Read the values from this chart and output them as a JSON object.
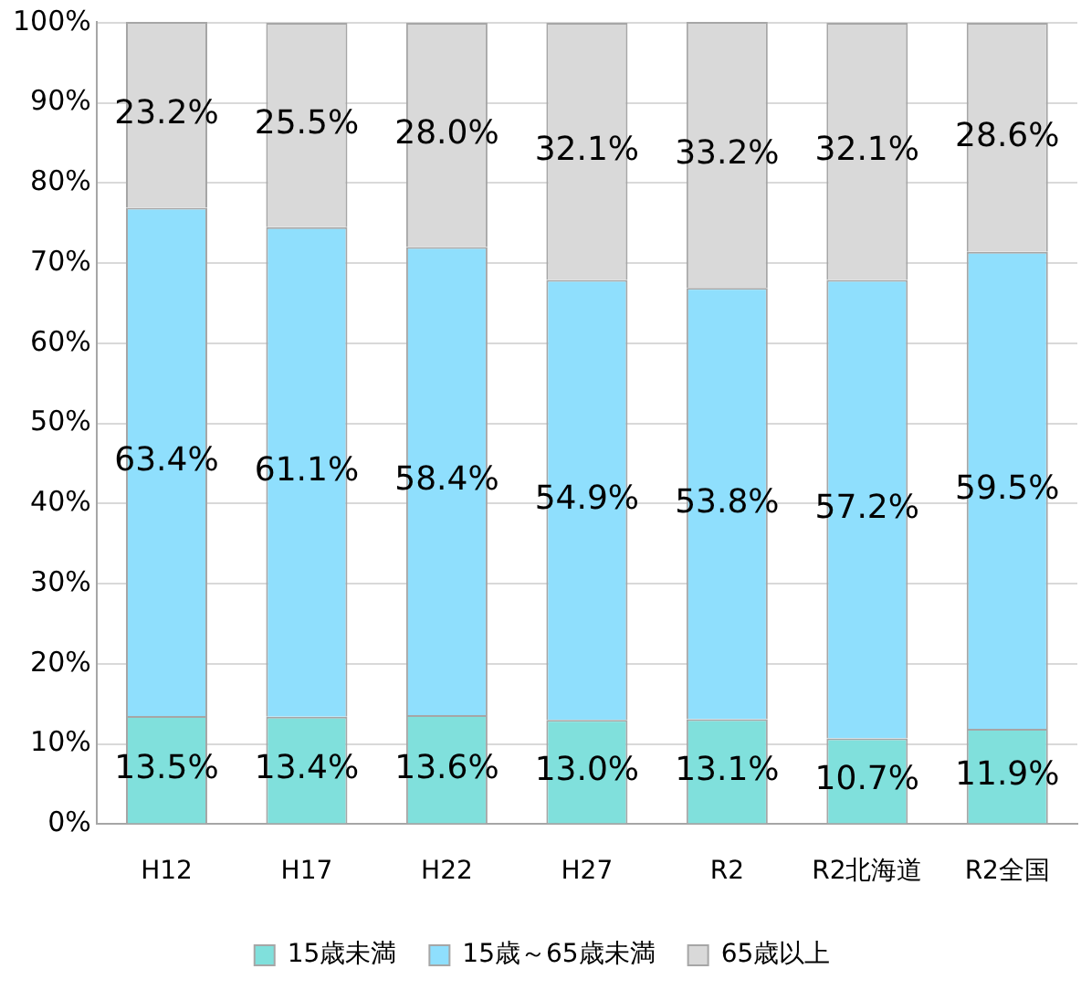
{
  "chart_data": {
    "type": "bar",
    "stacked": true,
    "categories": [
      "H12",
      "H17",
      "H22",
      "H27",
      "R2",
      "R2北海道",
      "R2全国"
    ],
    "series": [
      {
        "name": "15歳未満",
        "color": "#80e0dc",
        "values": [
          13.5,
          13.4,
          13.6,
          13.0,
          13.1,
          10.7,
          11.9
        ],
        "value_labels": [
          "13.5%",
          "13.4%",
          "13.6%",
          "13.0%",
          "13.1%",
          "10.7%",
          "11.9%"
        ]
      },
      {
        "name": "15歳～65歳未満",
        "color": "#8fdffd",
        "values": [
          63.4,
          61.1,
          58.4,
          54.9,
          53.8,
          57.2,
          59.5
        ],
        "value_labels": [
          "63.4%",
          "61.1%",
          "58.4%",
          "54.9%",
          "53.8%",
          "57.2%",
          "59.5%"
        ]
      },
      {
        "name": "65歳以上",
        "color": "#d9d9d9",
        "values": [
          23.2,
          25.5,
          28.0,
          32.1,
          33.2,
          32.1,
          28.6
        ],
        "value_labels": [
          "23.2%",
          "25.5%",
          "28.0%",
          "32.1%",
          "33.2%",
          "32.1%",
          "28.6%"
        ]
      }
    ],
    "ylim": [
      0,
      100.1
    ],
    "yticks": [
      {
        "value": 0,
        "label": "0%"
      },
      {
        "value": 10,
        "label": "10%"
      },
      {
        "value": 20,
        "label": "20%"
      },
      {
        "value": 30,
        "label": "30%"
      },
      {
        "value": 40,
        "label": "40%"
      },
      {
        "value": 50,
        "label": "50%"
      },
      {
        "value": 60,
        "label": "60%"
      },
      {
        "value": 70,
        "label": "70%"
      },
      {
        "value": 80,
        "label": "80%"
      },
      {
        "value": 90,
        "label": "90%"
      },
      {
        "value": 100,
        "label": "100%"
      }
    ],
    "grid": "y",
    "legend": "bottom"
  }
}
